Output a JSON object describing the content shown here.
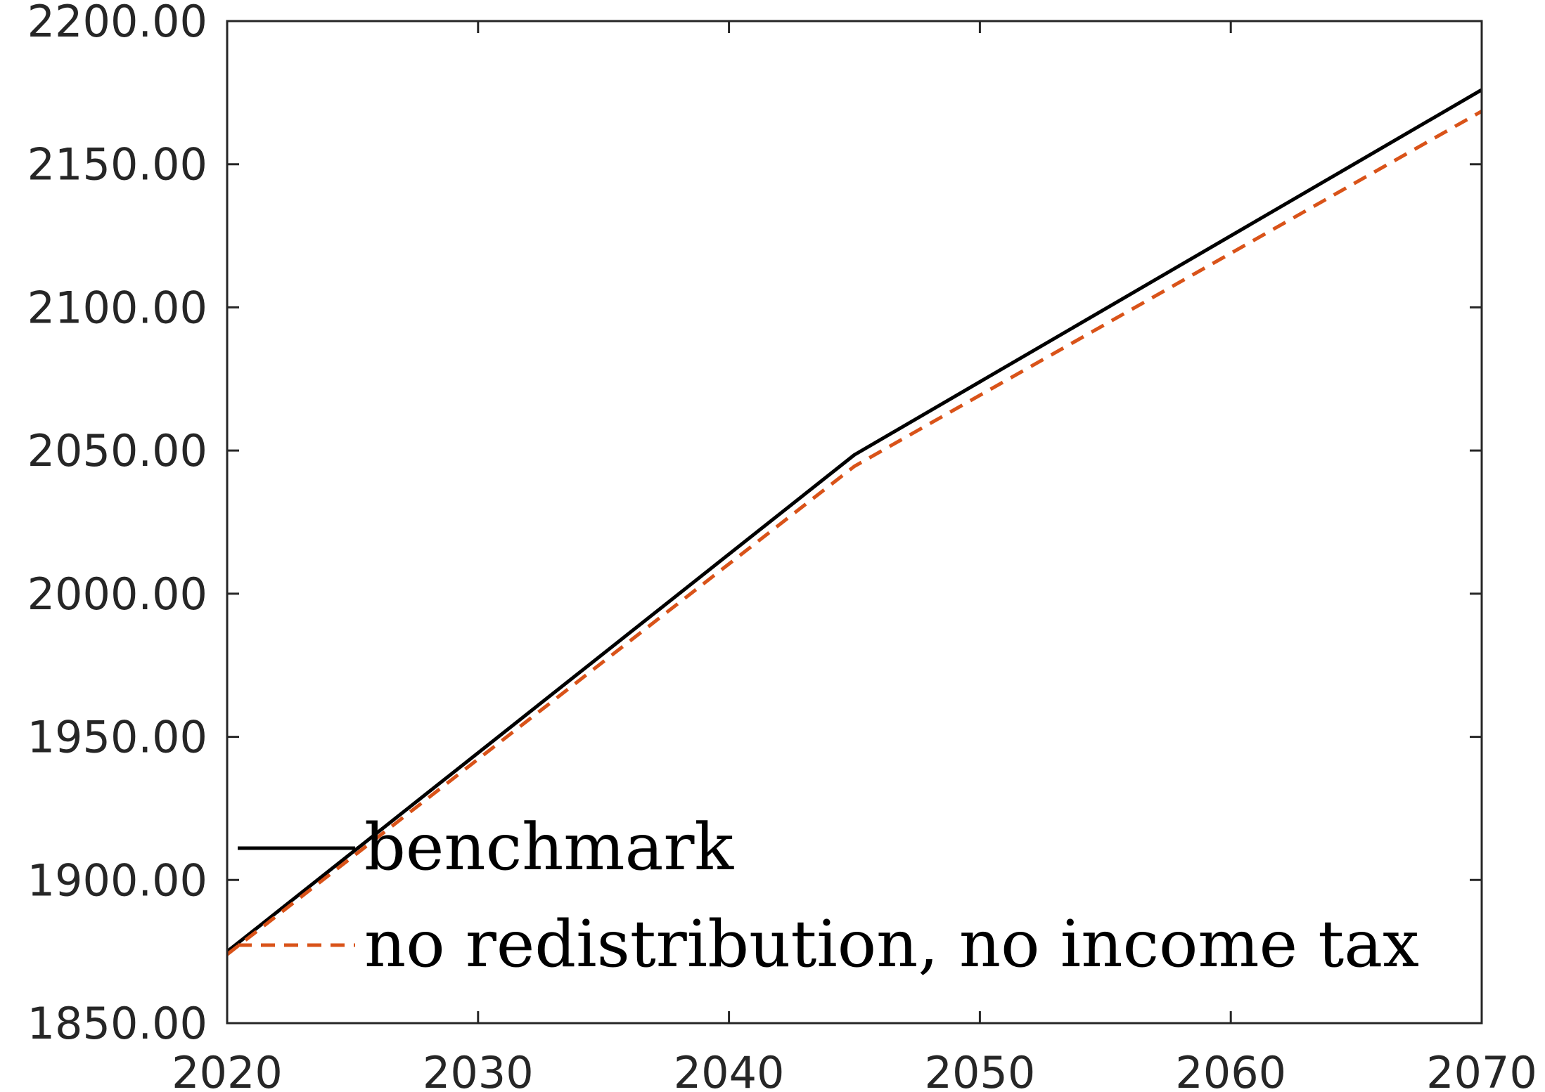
{
  "chart_data": {
    "type": "line",
    "title": "",
    "xlabel": "",
    "ylabel": "",
    "xlim": [
      2020,
      2070
    ],
    "ylim": [
      1850,
      2200
    ],
    "x_ticks": [
      2020,
      2030,
      2040,
      2050,
      2060,
      2070
    ],
    "x_tick_labels": [
      "2020",
      "2030",
      "2040",
      "2050",
      "2060",
      "2070"
    ],
    "y_ticks": [
      1850,
      1900,
      1950,
      2000,
      2050,
      2100,
      2150,
      2200
    ],
    "y_tick_labels": [
      "1850.00",
      "1900.00",
      "1950.00",
      "2000.00",
      "2050.00",
      "2100.00",
      "2150.00",
      "2200.00"
    ],
    "grid": false,
    "legend_position": "bottom-left",
    "series": [
      {
        "name": "benchmark",
        "color": "#000000",
        "style": "solid",
        "x": [
          2020,
          2045,
          2070
        ],
        "y": [
          1875,
          2048.5,
          2176
        ]
      },
      {
        "name": "no redistribution, no income tax",
        "color": "#D95319",
        "style": "dashed",
        "x": [
          2020,
          2045,
          2070
        ],
        "y": [
          1874,
          2044.5,
          2168.5
        ]
      }
    ]
  }
}
